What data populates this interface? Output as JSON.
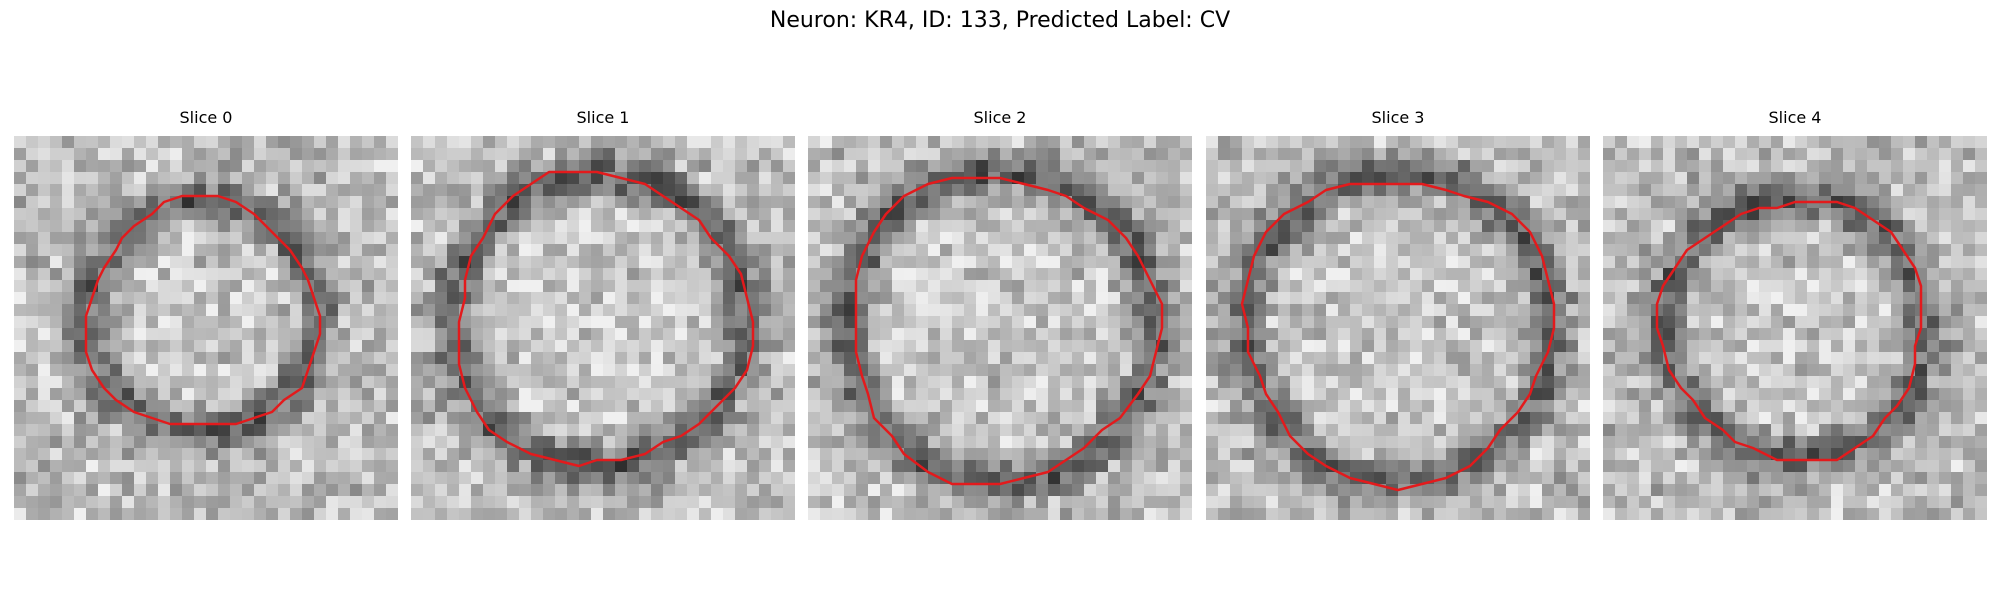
{
  "figure": {
    "title": "Neuron: KR4, ID: 133, Predicted Label: CV",
    "overlay_color": "#e31a1c",
    "panels": [
      {
        "title": "Slice 0",
        "contour_radius": 0.3,
        "contour_cy": 0.47,
        "contour_cx": 0.49
      },
      {
        "title": "Slice 1",
        "contour_radius": 0.38,
        "contour_cy": 0.48,
        "contour_cx": 0.49
      },
      {
        "title": "Slice 2",
        "contour_radius": 0.4,
        "contour_cy": 0.5,
        "contour_cx": 0.5
      },
      {
        "title": "Slice 3",
        "contour_radius": 0.4,
        "contour_cy": 0.5,
        "contour_cx": 0.5
      },
      {
        "title": "Slice 4",
        "contour_radius": 0.34,
        "contour_cy": 0.5,
        "contour_cx": 0.5
      }
    ]
  }
}
